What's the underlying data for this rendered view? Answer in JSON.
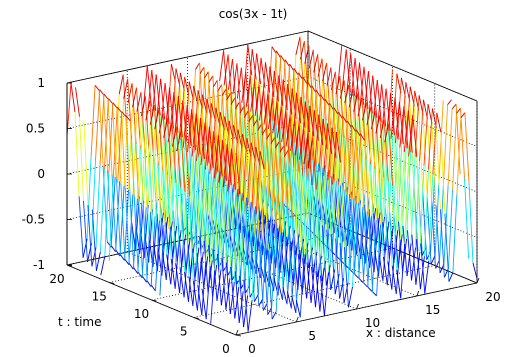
{
  "chart_data": {
    "type": "surface-mesh",
    "title": "cos(3x - 1t)",
    "function": "cos(3x - 1t)",
    "xlabel": "x : distance",
    "ylabel": "t : time",
    "zlabel": "",
    "xlim": [
      0,
      20
    ],
    "ylim": [
      0,
      20
    ],
    "zlim": [
      -1,
      1
    ],
    "x_ticks": [
      "0",
      "5",
      "10",
      "15",
      "20"
    ],
    "y_ticks": [
      "0",
      "5",
      "10",
      "15",
      "20"
    ],
    "z_ticks": [
      "-1",
      "-0.5",
      "0",
      "0.5",
      "1"
    ],
    "x_tick_values": [
      0,
      5,
      10,
      15,
      20
    ],
    "y_tick_values": [
      0,
      5,
      10,
      15,
      20
    ],
    "z_tick_values": [
      -1,
      -0.5,
      0,
      0.5,
      1
    ],
    "grid": true,
    "box": true,
    "colormap": "jet",
    "x_samples": 61,
    "t_samples": 21
  }
}
